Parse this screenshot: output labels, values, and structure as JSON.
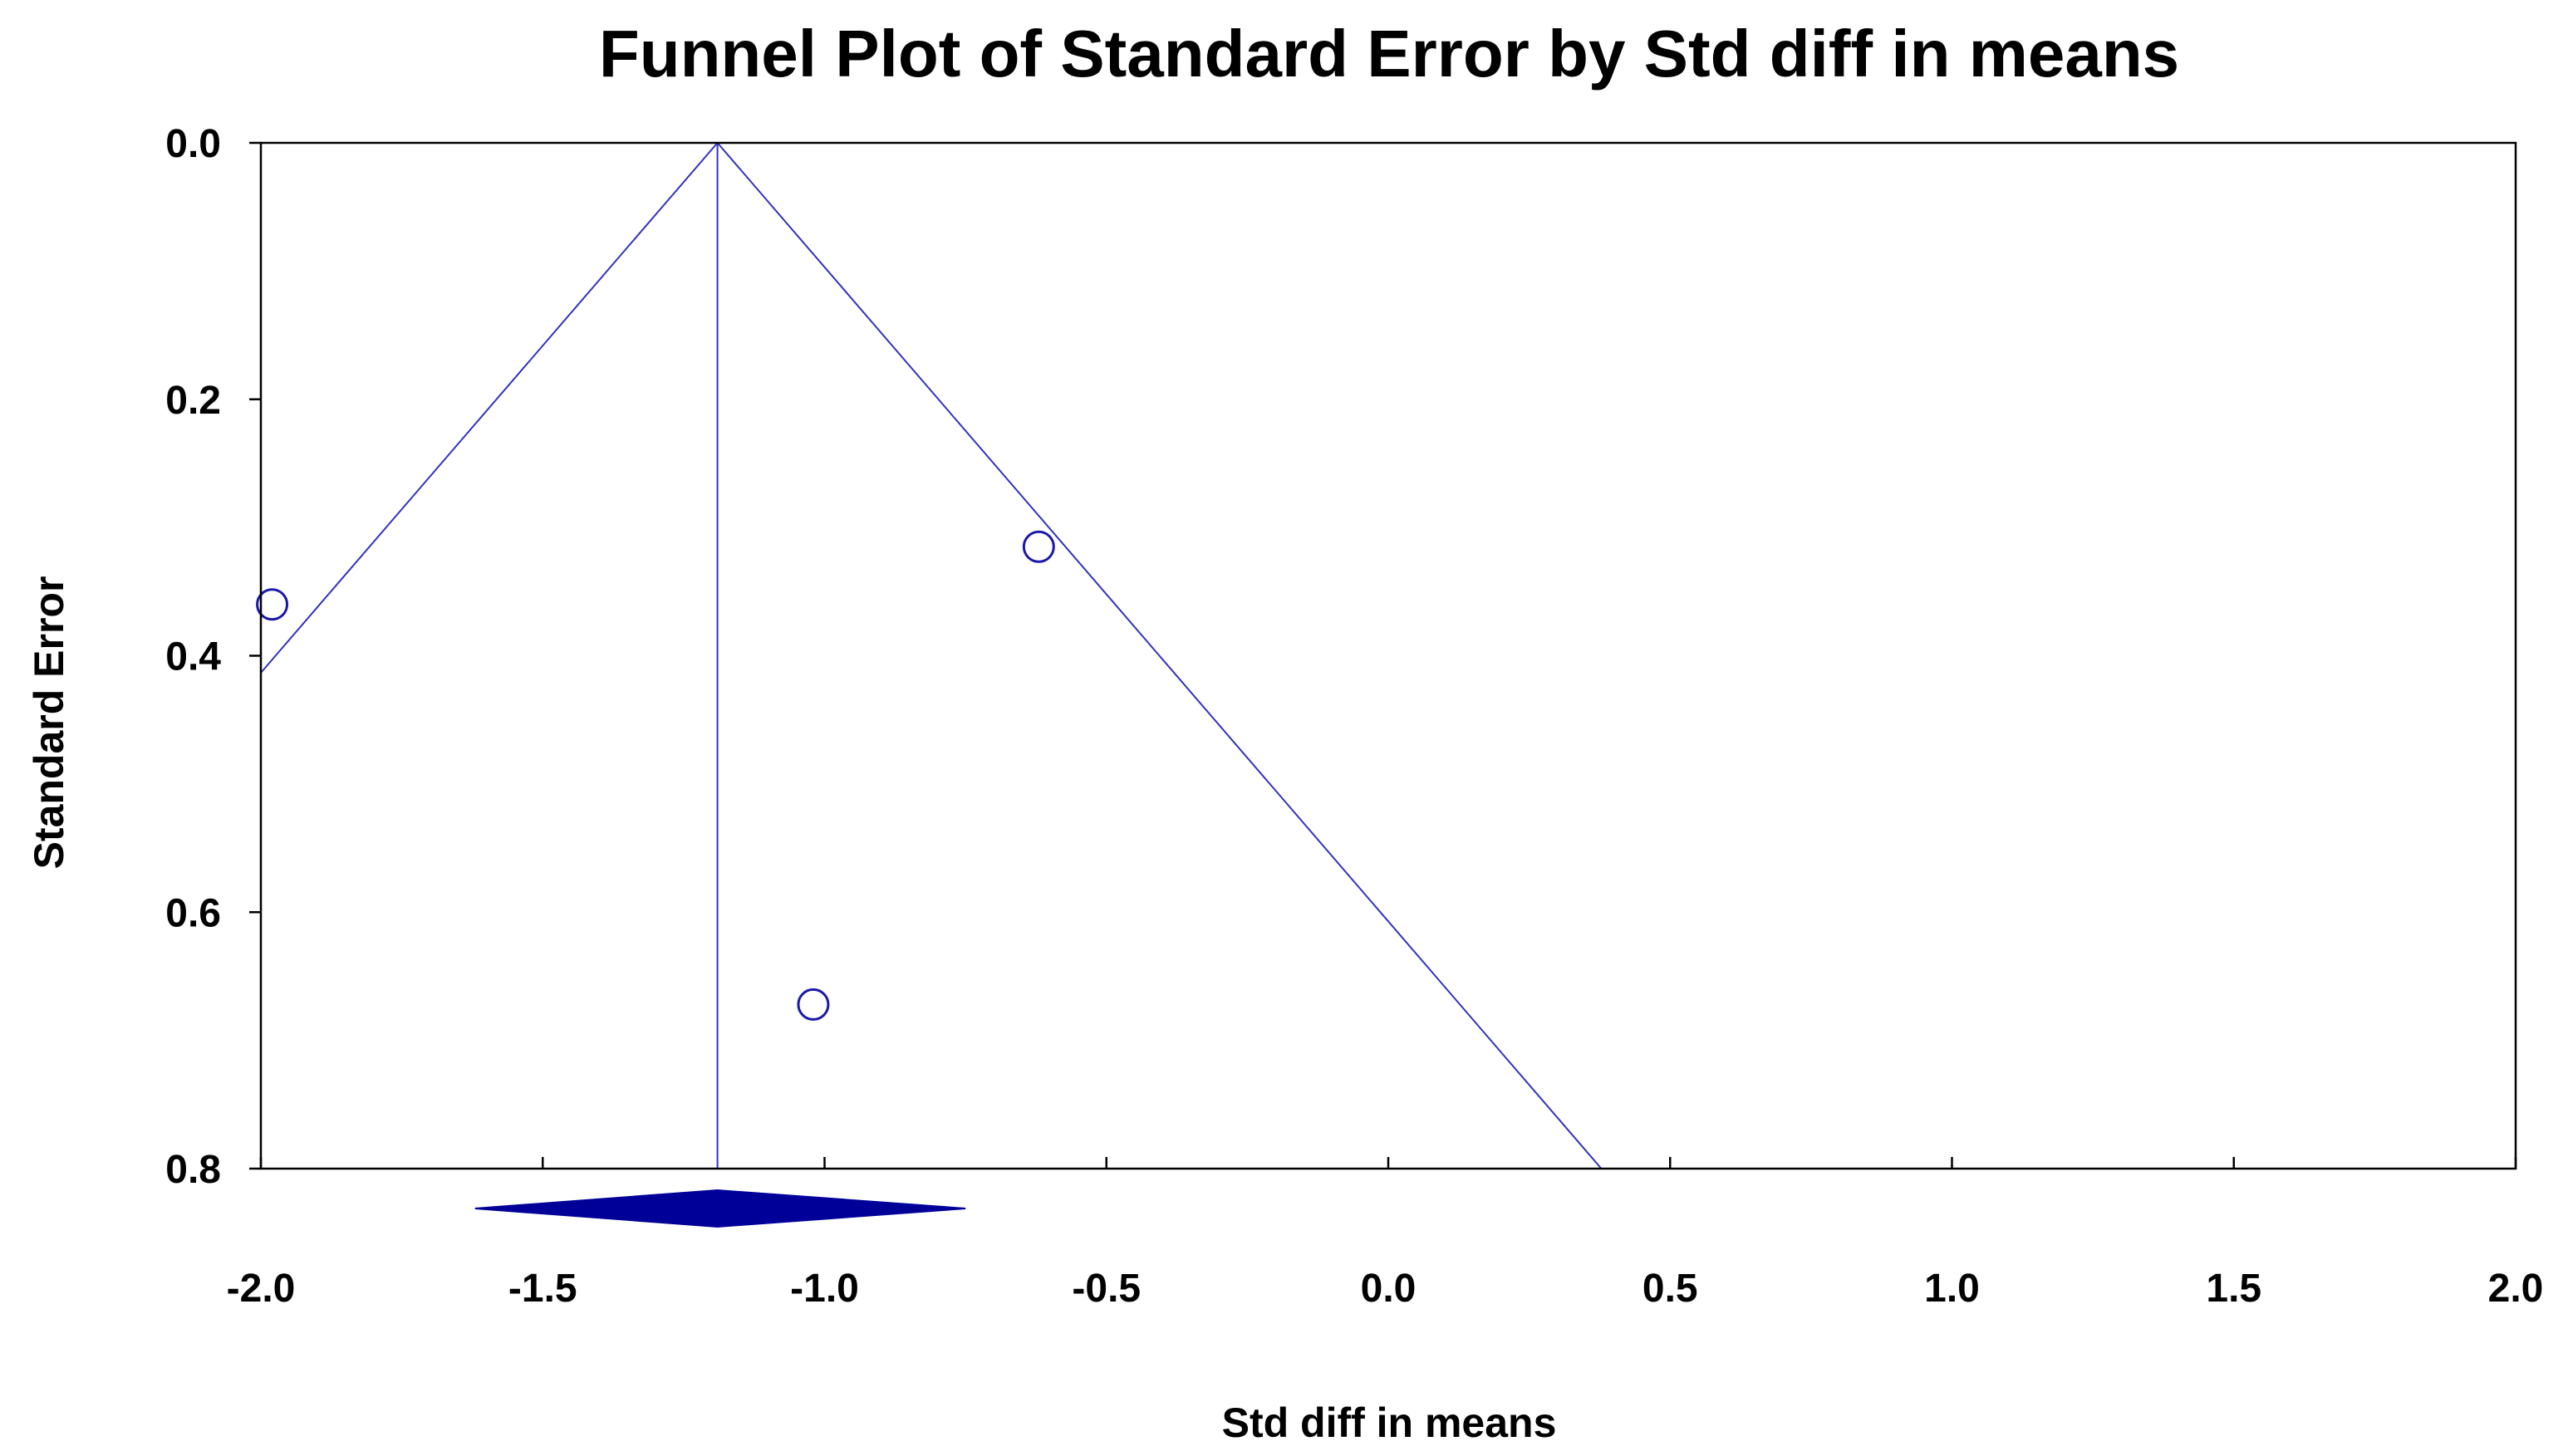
{
  "chart_data": {
    "type": "scatter",
    "title": "Funnel Plot of Standard Error by Std diff in means",
    "xlabel": "Std diff in means",
    "ylabel": "Standard Error",
    "xlim": [
      -2.0,
      2.0
    ],
    "ylim": [
      0.0,
      0.8
    ],
    "y_inverted": true,
    "x_ticks": [
      "-2.0",
      "-1.5",
      "-1.0",
      "-0.5",
      "0.0",
      "0.5",
      "1.0",
      "1.5",
      "2.0"
    ],
    "y_ticks": [
      "0.0",
      "0.2",
      "0.4",
      "0.6",
      "0.8"
    ],
    "grid": false,
    "series": [
      {
        "points": [
          {
            "x": -1.98,
            "y": 0.36
          },
          {
            "x": -0.62,
            "y": 0.315
          },
          {
            "x": -1.02,
            "y": 0.672
          }
        ]
      }
    ],
    "summary_effect": {
      "estimate": -1.19,
      "ci_lower": -1.62,
      "ci_upper": -0.75
    },
    "funnel_multiplier": 1.96,
    "colors": {
      "line": "#3333bb",
      "marker": "#1a1aa8",
      "diamond": "#000099",
      "axis": "#000000"
    }
  }
}
